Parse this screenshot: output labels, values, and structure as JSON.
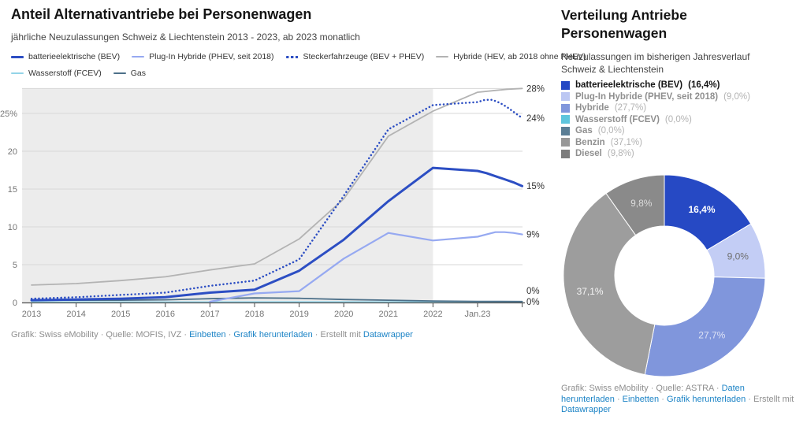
{
  "chart_data": [
    {
      "type": "line",
      "title": "Anteil Alternativantriebe bei Personenwagen",
      "subtitle": "jährliche Neuzulassungen Schweiz & Liechtenstein 2013 - 2023, ab 2023 monatlich",
      "grid": true,
      "legend_position": "top",
      "ylim": [
        0,
        28.3
      ],
      "y_ticks": [
        {
          "value": 25,
          "label": "25%"
        },
        {
          "value": 20,
          "label": "20"
        },
        {
          "value": 15,
          "label": "15"
        },
        {
          "value": 10,
          "label": "10"
        },
        {
          "value": 5,
          "label": "5"
        },
        {
          "value": 0,
          "label": "0"
        }
      ],
      "x_ticks": [
        {
          "slot": 0,
          "label": "2013"
        },
        {
          "slot": 1,
          "label": "2014"
        },
        {
          "slot": 2,
          "label": "2015"
        },
        {
          "slot": 3,
          "label": "2016"
        },
        {
          "slot": 4,
          "label": "2017"
        },
        {
          "slot": 5,
          "label": "2018"
        },
        {
          "slot": 6,
          "label": "2019"
        },
        {
          "slot": 7,
          "label": "2020"
        },
        {
          "slot": 8,
          "label": "2021"
        },
        {
          "slot": 9,
          "label": "2022"
        },
        {
          "slot": 10,
          "label": "Jan.23"
        },
        {
          "slot": 11,
          "label": ""
        }
      ],
      "shaded_region": {
        "from_slot": -0.21,
        "to_slot": 9,
        "color": "#ececec"
      },
      "series": [
        {
          "name": "batterieelektrische (BEV)",
          "color": "#2c4ec3",
          "dash": null,
          "width": 3,
          "end_label": "15%",
          "x": [
            0,
            1,
            2,
            3,
            4,
            5,
            6,
            7,
            8,
            9,
            10,
            10.2,
            10.4,
            10.6,
            10.8,
            11
          ],
          "y": [
            0.3,
            0.4,
            0.5,
            0.7,
            1.3,
            1.7,
            4.2,
            8.3,
            13.4,
            17.8,
            17.4,
            17.1,
            16.7,
            16.3,
            15.9,
            15.4
          ]
        },
        {
          "name": "Plug-In Hybride (PHEV, seit 2018)",
          "color": "#96a9f1",
          "dash": null,
          "width": 2.2,
          "end_label": "9%",
          "x": [
            4,
            5,
            6,
            7,
            8,
            9,
            10,
            10.2,
            10.4,
            10.6,
            10.8,
            11
          ],
          "y": [
            0.1,
            1.2,
            1.5,
            5.8,
            9.2,
            8.2,
            8.7,
            9.0,
            9.3,
            9.3,
            9.2,
            9.0
          ]
        },
        {
          "name": "Steckerfahrzeuge (BEV + PHEV)",
          "color": "#2c4ec3",
          "dash": "0.1 4.6",
          "width": 2.5,
          "end_label": "24%",
          "x": [
            0,
            1,
            2,
            3,
            4,
            5,
            6,
            7,
            8,
            9,
            10,
            10.17,
            10.33,
            10.5,
            10.67,
            10.83,
            11
          ],
          "y": [
            0.5,
            0.7,
            1.0,
            1.3,
            2.2,
            2.9,
            5.7,
            14.1,
            22.9,
            26.1,
            26.5,
            26.8,
            26.8,
            26.4,
            25.8,
            25.1,
            24.4
          ]
        },
        {
          "name": "Hybride (HEV, ab 2018 ohne PHEV)",
          "color": "#b3b3b3",
          "dash": null,
          "width": 1.8,
          "end_label": "28%",
          "x": [
            0,
            1,
            2,
            3,
            4,
            5,
            6,
            7,
            8,
            9,
            10,
            10.33,
            10.67,
            11
          ],
          "y": [
            2.3,
            2.5,
            2.9,
            3.4,
            4.3,
            5.1,
            8.4,
            13.7,
            22.0,
            25.3,
            27.8,
            28.0,
            28.2,
            28.3
          ]
        },
        {
          "name": "Wasserstoff (FCEV)",
          "color": "#93d4e8",
          "dash": null,
          "width": 1.8,
          "end_label": "0%",
          "x": [
            0,
            11
          ],
          "y": [
            0.05,
            0.08
          ]
        },
        {
          "name": "Gas",
          "color": "#4d7089",
          "dash": null,
          "width": 1.8,
          "end_label": "0%",
          "x": [
            0,
            1,
            2,
            3,
            4,
            5,
            6,
            7,
            8,
            9,
            10,
            11
          ],
          "y": [
            0.3,
            0.3,
            0.3,
            0.35,
            0.5,
            0.6,
            0.55,
            0.4,
            0.3,
            0.2,
            0.15,
            0.12
          ]
        }
      ]
    },
    {
      "type": "pie",
      "donut": true,
      "title": "Verteilung Antriebe\nPersonenwagen",
      "subtitle": "Neuzulassungen im bisherigen Jahresverlauf\nSchweiz & Liechtenstein",
      "legend_position": "top-left",
      "slices": [
        {
          "label": "batterieelektrische (BEV)",
          "pct": 16.4,
          "value_label": "16,4%",
          "color": "#2649c4",
          "legend_color": "#2649c4",
          "label_color": "#ffffff",
          "emphasis": true
        },
        {
          "label": "Plug-In Hybride (PHEV, seit 2018)",
          "pct": 9.0,
          "value_label": "9,0%",
          "color": "#c3cdf5",
          "legend_color": "#bcc7f3",
          "label_color": "#6f6f6f",
          "emphasis": false
        },
        {
          "label": "Hybride",
          "pct": 27.7,
          "value_label": "27,7%",
          "color": "#8096dc",
          "legend_color": "#8096dc",
          "label_color": "#dde2f5",
          "emphasis": false
        },
        {
          "label": "Wasserstoff (FCEV)",
          "pct": 0.0,
          "value_label": "0,0%",
          "color": "#5ec5dd",
          "legend_color": "#5ec5dd",
          "label_color": "#ffffff",
          "emphasis": false
        },
        {
          "label": "Gas",
          "pct": 0.0,
          "value_label": "0,0%",
          "color": "#5b7e95",
          "legend_color": "#5b7e95",
          "label_color": "#ffffff",
          "emphasis": false
        },
        {
          "label": "Benzin",
          "pct": 37.1,
          "value_label": "37,1%",
          "color": "#9d9d9d",
          "legend_color": "#989898",
          "label_color": "#f5f5f5",
          "emphasis": false
        },
        {
          "label": "Diesel",
          "pct": 9.8,
          "value_label": "9,8%",
          "color": "#8a8a8a",
          "legend_color": "#7c7c7c",
          "label_color": "#dcdcdc",
          "emphasis": false
        }
      ]
    }
  ],
  "left_panel": {
    "footer_parts": [
      {
        "text": "Grafik: Swiss eMobility · Quelle: MOFIS, IVZ · ",
        "link": false,
        "name": "credits-text"
      },
      {
        "text": "Einbetten",
        "link": true,
        "name": "embed-link"
      },
      {
        "text": " · ",
        "link": false,
        "name": "separator"
      },
      {
        "text": "Grafik herunterladen",
        "link": true,
        "name": "download-image-link"
      },
      {
        "text": " · Erstellt mit ",
        "link": false,
        "name": "created-with-text"
      },
      {
        "text": "Datawrapper",
        "link": true,
        "name": "datawrapper-link"
      }
    ]
  },
  "right_panel": {
    "footer_parts": [
      {
        "text": "Grafik: Swiss eMobility · Quelle: ASTRA · ",
        "link": false,
        "name": "credits-text"
      },
      {
        "text": "Daten herunterladen",
        "link": true,
        "name": "download-data-link"
      },
      {
        "text": " · ",
        "link": false,
        "name": "separator"
      },
      {
        "text": "Einbetten",
        "link": true,
        "name": "embed-link"
      },
      {
        "text": " · ",
        "link": false,
        "name": "separator"
      },
      {
        "text": "Grafik herunterladen",
        "link": true,
        "name": "download-image-link"
      },
      {
        "text": " · Erstellt mit ",
        "link": false,
        "name": "created-with-text"
      },
      {
        "text": "Datawrapper",
        "link": true,
        "name": "datawrapper-link"
      }
    ]
  }
}
